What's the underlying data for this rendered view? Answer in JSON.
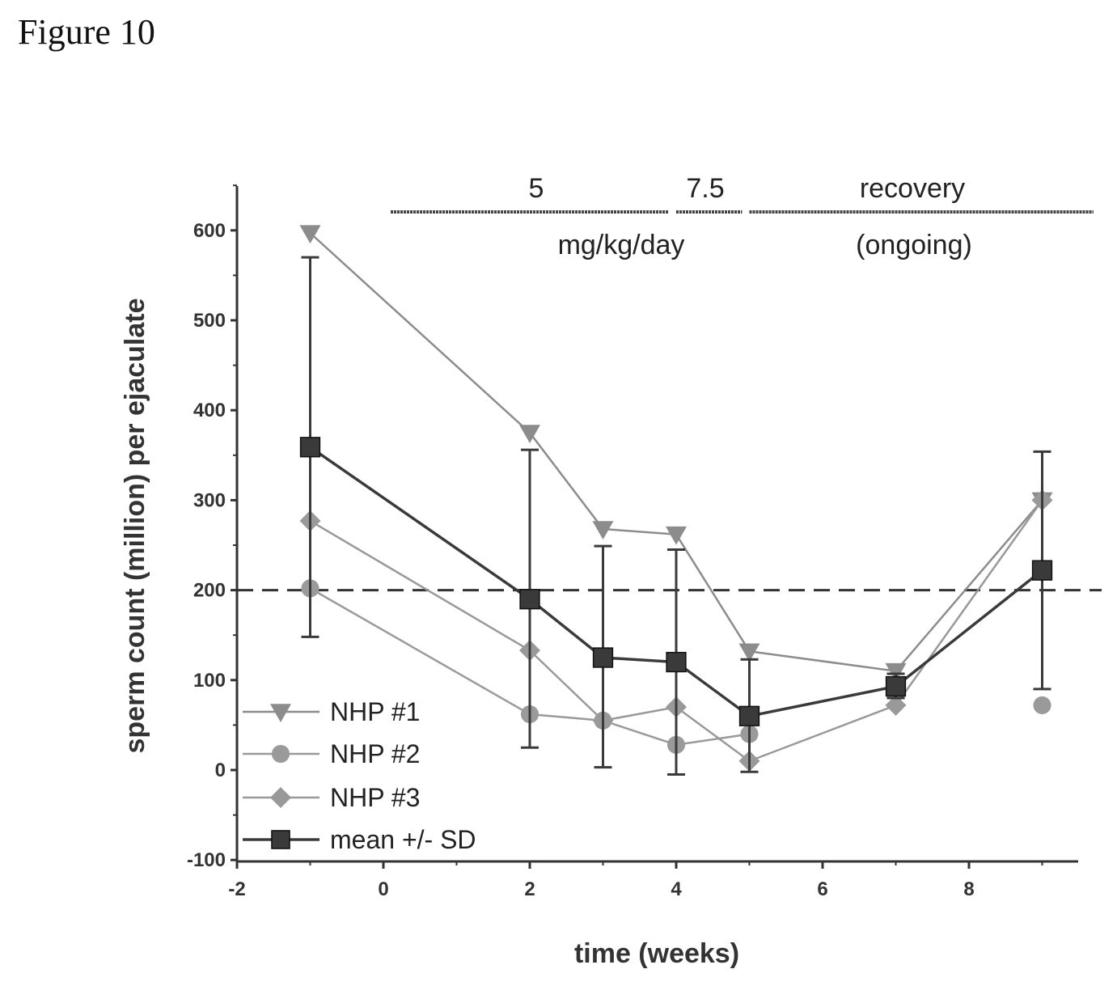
{
  "figure_label": "Figure 10",
  "colors": {
    "axis": "#333333",
    "nhp1": "#8c8c8c",
    "nhp2": "#9a9a9a",
    "nhp3": "#999999",
    "mean": "#3a3a3a",
    "threshold": "#333333"
  },
  "chart_data": {
    "type": "line",
    "title": "",
    "xlabel": "time (weeks)",
    "ylabel": "sperm count (million) per ejaculate",
    "xlim": [
      -2,
      9.8
    ],
    "ylim": [
      -100,
      650
    ],
    "x_ticks": [
      -2,
      0,
      2,
      4,
      6,
      8
    ],
    "y_ticks": [
      -100,
      0,
      100,
      200,
      300,
      400,
      500,
      600
    ],
    "threshold_line": 200,
    "grid": false,
    "legend_position": "bottom-left",
    "series": [
      {
        "name": "NHP #1",
        "marker": "triangle-down",
        "x": [
          -1,
          2,
          3,
          4,
          5,
          7,
          9
        ],
        "y": [
          597,
          375,
          268,
          262,
          132,
          110,
          300
        ]
      },
      {
        "name": "NHP #2",
        "marker": "circle",
        "x": [
          -1,
          2,
          3,
          4,
          5
        ],
        "y": [
          202,
          62,
          55,
          28,
          40
        ]
      },
      {
        "name": "NHP #2",
        "marker": "circle",
        "x": [
          9
        ],
        "y": [
          72
        ],
        "show_in_legend": false
      },
      {
        "name": "NHP #3",
        "marker": "diamond",
        "x": [
          -1,
          2,
          3,
          4,
          5,
          7,
          9
        ],
        "y": [
          277,
          133,
          55,
          70,
          10,
          72,
          300
        ]
      },
      {
        "name": "mean +/- SD",
        "marker": "square",
        "x": [
          -1,
          2,
          3,
          4,
          5,
          7,
          9
        ],
        "y": [
          359,
          190,
          125,
          120,
          60,
          93,
          222
        ],
        "error_low": [
          148,
          25,
          3,
          -5,
          -2,
          80,
          90
        ],
        "error_high": [
          570,
          356,
          249,
          245,
          123,
          107,
          354
        ]
      }
    ],
    "annotations": [
      {
        "label": "5",
        "x_start": 0.1,
        "x_end": 3.9
      },
      {
        "label": "7.5",
        "x_start": 4.0,
        "x_end": 4.9
      },
      {
        "label": "recovery",
        "x_start": 5.0,
        "x_end": 9.7
      }
    ],
    "annotation_sublabels": [
      "mg/kg/day",
      "(ongoing)"
    ]
  }
}
